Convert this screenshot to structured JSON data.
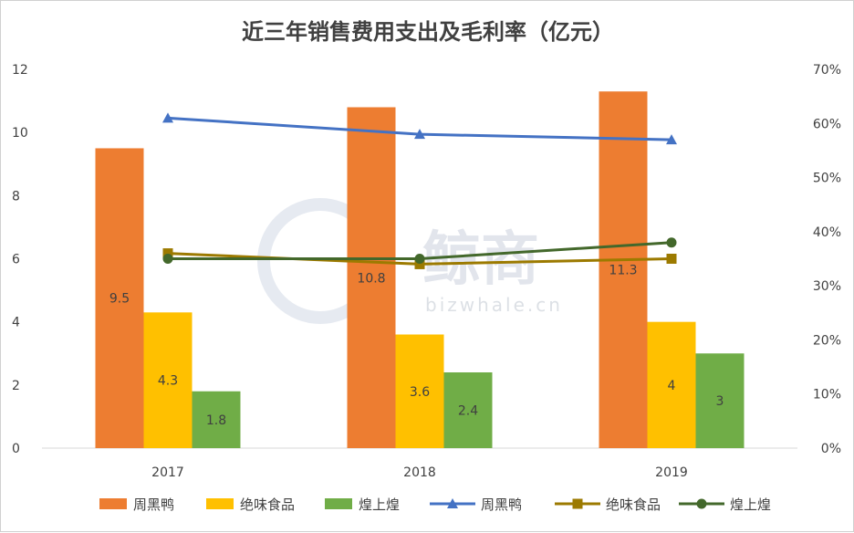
{
  "chart_data": {
    "type": "bar",
    "title": "近三年销售费用支出及毛利率（亿元）",
    "categories": [
      "2017",
      "2018",
      "2019"
    ],
    "ylim": [
      0,
      12
    ],
    "yticks": [
      "0",
      "2",
      "4",
      "6",
      "8",
      "10",
      "12"
    ],
    "y2lim": [
      0,
      70
    ],
    "y2ticks": [
      "0%",
      "10%",
      "20%",
      "30%",
      "40%",
      "50%",
      "60%",
      "70%"
    ],
    "grid": false,
    "legend_position": "bottom",
    "bar_series": [
      {
        "name": "周黑鸭",
        "color": "#ED7D31",
        "values": [
          9.5,
          10.8,
          11.3
        ],
        "labels": [
          "9.5",
          "10.8",
          "11.3"
        ]
      },
      {
        "name": "绝味食品",
        "color": "#FFC000",
        "values": [
          4.3,
          3.6,
          4
        ],
        "labels": [
          "4.3",
          "3.6",
          "4"
        ]
      },
      {
        "name": "煌上煌",
        "color": "#70AD47",
        "values": [
          1.8,
          2.4,
          3
        ],
        "labels": [
          "1.8",
          "2.4",
          "3"
        ]
      }
    ],
    "line_series": [
      {
        "name": "周黑鸭",
        "color": "#4472C4",
        "marker": "triangle",
        "values": [
          61,
          58,
          57
        ]
      },
      {
        "name": "绝味食品",
        "color": "#9C7A00",
        "marker": "square",
        "values": [
          36,
          34,
          35
        ]
      },
      {
        "name": "煌上煌",
        "color": "#43682B",
        "marker": "circle",
        "values": [
          35,
          35,
          38
        ]
      }
    ]
  },
  "watermark": {
    "main": "鲸商",
    "sub": "bizwhale.cn"
  }
}
